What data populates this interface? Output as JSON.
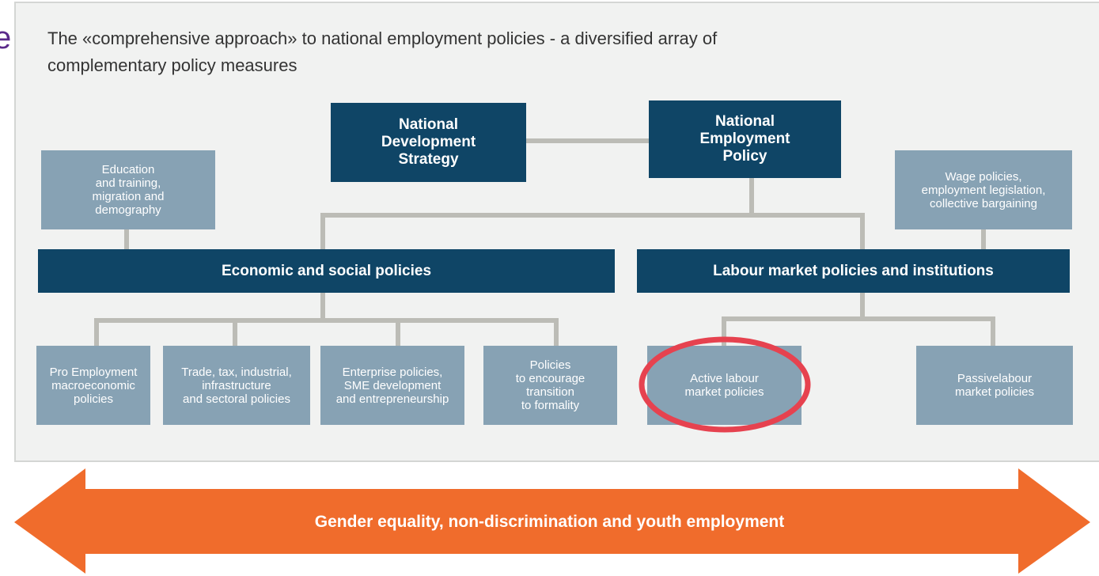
{
  "fragment": "e",
  "title": [
    "The «comprehensive approach» to national employment policies - a diversified array of",
    "complementary policy measures"
  ],
  "nodes": [
    {
      "lines": [
        "National",
        "Development",
        "Strategy"
      ]
    },
    {
      "lines": [
        "National",
        "Employment",
        "Policy"
      ]
    },
    {
      "lines": [
        "Education",
        "and training,",
        "migration and",
        "demography"
      ]
    },
    {
      "lines": [
        "Wage policies,",
        "employment legislation,",
        "collective bargaining"
      ]
    },
    {
      "lines": [
        "Economic and social policies"
      ]
    },
    {
      "lines": [
        "Labour market policies and institutions"
      ]
    },
    {
      "lines": [
        "Pro Employment",
        "macroeconomic",
        "policies"
      ]
    },
    {
      "lines": [
        "Trade, tax, industrial,",
        "infrastructure",
        "and sectoral policies"
      ]
    },
    {
      "lines": [
        "Enterprise policies,",
        "SME development",
        "and entrepreneurship"
      ]
    },
    {
      "lines": [
        "Policies",
        "to encourage",
        "transition",
        "to formality"
      ]
    },
    {
      "lines": [
        "Active labour",
        "market policies"
      ]
    },
    {
      "lines": [
        "Passivelabour",
        "market policies"
      ]
    }
  ],
  "arrow": {
    "label": "Gender equality, non-discrimination and youth employment"
  }
}
